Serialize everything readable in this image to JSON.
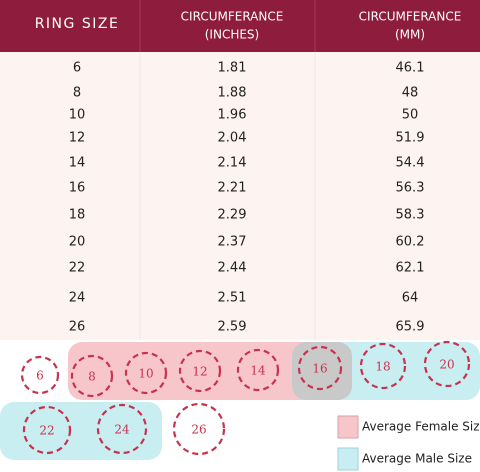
{
  "header": {
    "columns": [
      [
        "RING SIZE"
      ],
      [
        "CIRCUMFERANCE",
        "(INCHES)"
      ],
      [
        "CIRCUMFERANCE",
        "(MM)"
      ]
    ]
  },
  "table": {
    "rows": [
      [
        6,
        1.81,
        46.1
      ],
      [
        8,
        1.88,
        48
      ],
      [
        10,
        1.96,
        50
      ],
      [
        12,
        2.04,
        51.9
      ],
      [
        14,
        2.14,
        54.4
      ],
      [
        16,
        2.21,
        56.3
      ],
      [
        18,
        2.29,
        58.3
      ],
      [
        20,
        2.37,
        60.2
      ],
      [
        22,
        2.44,
        62.1
      ],
      [
        24,
        2.51,
        64
      ],
      [
        26,
        2.59,
        65.9
      ]
    ]
  },
  "legend": {
    "female": "Average Female Size",
    "male": "Average Male Size"
  }
}
